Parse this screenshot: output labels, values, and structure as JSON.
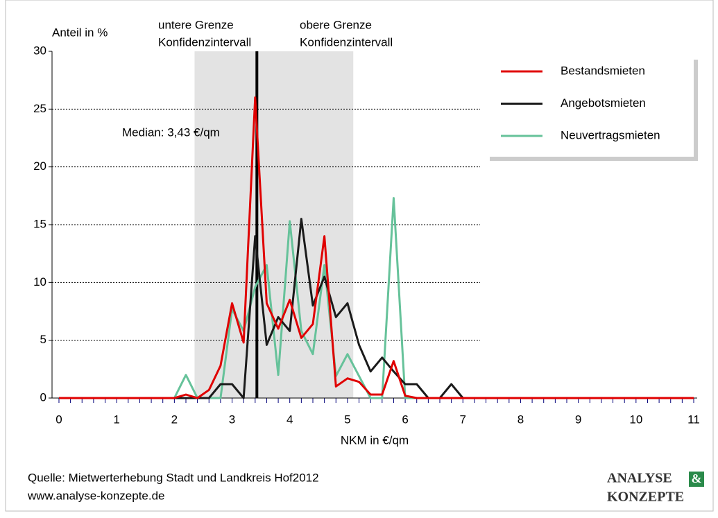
{
  "chart_data": {
    "type": "line",
    "y_label": "Anteil in %",
    "x_label": "NKM in €/qm",
    "x": [
      0,
      0.2,
      0.4,
      0.6,
      0.8,
      1,
      1.2,
      1.4,
      1.6,
      1.8,
      2,
      2.2,
      2.4,
      2.6,
      2.8,
      3,
      3.2,
      3.4,
      3.6,
      3.8,
      4,
      4.2,
      4.4,
      4.6,
      4.8,
      5,
      5.2,
      5.4,
      5.6,
      5.8,
      6,
      6.2,
      6.4,
      6.6,
      6.8,
      7,
      7.2,
      7.4,
      7.6,
      7.8,
      8,
      8.2,
      8.4,
      8.6,
      8.8,
      9,
      9.2,
      9.4,
      9.6,
      9.8,
      10,
      10.2,
      10.4,
      10.6,
      10.8,
      11
    ],
    "series": [
      {
        "name": "Bestandsmieten",
        "color": "#e00000",
        "values": [
          0,
          0,
          0,
          0,
          0,
          0,
          0,
          0,
          0,
          0,
          0,
          0.3,
          0,
          0.7,
          2.8,
          8.2,
          4.8,
          26,
          8.2,
          6,
          8.5,
          5.2,
          6.4,
          14,
          1,
          1.7,
          1.4,
          0.3,
          0.3,
          3.2,
          0.2,
          0,
          0,
          0,
          0,
          0,
          0,
          0,
          0,
          0,
          0,
          0,
          0,
          0,
          0,
          0,
          0,
          0,
          0,
          0,
          0,
          0,
          0,
          0,
          0,
          0
        ]
      },
      {
        "name": "Angebotsmieten",
        "color": "#1a1a1a",
        "values": [
          0,
          0,
          0,
          0,
          0,
          0,
          0,
          0,
          0,
          0,
          0,
          0,
          0,
          0,
          1.2,
          1.2,
          0,
          14,
          4.6,
          7,
          5.8,
          15.5,
          8,
          10.5,
          7,
          8.2,
          4.6,
          2.3,
          3.5,
          2.3,
          1.2,
          1.2,
          0,
          0,
          1.2,
          0,
          0,
          0,
          0,
          0,
          0,
          0,
          0,
          0,
          0,
          0,
          0,
          0,
          0,
          0,
          0,
          0,
          0,
          0,
          0,
          0
        ]
      },
      {
        "name": "Neuvertragsmieten",
        "color": "#66c29a",
        "values": [
          0,
          0,
          0,
          0,
          0,
          0,
          0,
          0,
          0,
          0,
          0,
          2,
          0,
          0,
          0,
          7.7,
          5.8,
          9.6,
          11.5,
          2,
          15.3,
          5.8,
          3.8,
          11.5,
          1.9,
          3.8,
          1.9,
          0,
          0,
          17.3,
          0,
          0,
          0,
          0,
          0,
          0,
          0,
          0,
          0,
          0,
          0,
          0,
          0,
          0,
          0,
          0,
          0,
          0,
          0,
          0,
          0,
          0,
          0,
          0,
          0,
          0
        ]
      }
    ],
    "xlim": [
      -0.12,
      11.06
    ],
    "xticks": [
      0,
      1,
      2,
      3,
      4,
      5,
      6,
      7,
      8,
      9,
      10,
      11
    ],
    "ylim": [
      0,
      30
    ],
    "yticks": [
      0,
      5,
      10,
      15,
      20,
      25,
      30
    ],
    "grid": true,
    "legend": "upper right",
    "ci_lower": {
      "value": 2.35,
      "label": [
        "untere Grenze",
        "Konfidenzintervall"
      ]
    },
    "ci_upper": {
      "value": 5.1,
      "label": [
        "obere Grenze",
        "Konfidenzintervall"
      ]
    },
    "median": {
      "value": 3.43,
      "label": "Median: 3,43 €/qm"
    },
    "source": [
      "Quelle: Mietwerterhebung Stadt und Landkreis Hof2012",
      "www.analyse-konzepte.de"
    ],
    "logo": [
      "ANALYSE",
      "&",
      "KONZEPTE"
    ]
  }
}
